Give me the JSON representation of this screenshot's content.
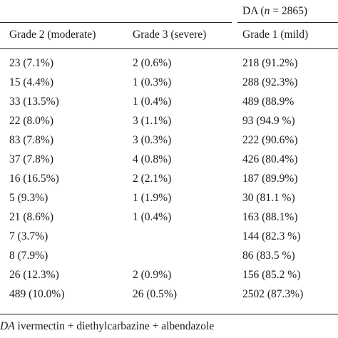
{
  "table": {
    "group_header": "DA (n = 2865)",
    "group_header_parts": {
      "prefix": "DA (",
      "n_symbol": "n",
      "suffix": " = 2865)"
    },
    "columns": [
      "Grade 2 (moderate)",
      "Grade 3 (severe)",
      "Grade 1 (mild)"
    ],
    "rows": [
      [
        "23 (7.1%)",
        "2 (0.6%)",
        "218 (91.2%)"
      ],
      [
        "15 (4.4%)",
        "1 (0.3%)",
        "288 (92.3%)"
      ],
      [
        "33 (13.5%)",
        "1 (0.4%)",
        "489 (88.9%"
      ],
      [
        "22 (8.0%)",
        "3 (1.1%)",
        "93 (94.9 %)"
      ],
      [
        "83 (7.8%)",
        "3 (0.3%)",
        "222 (90.6%)"
      ],
      [
        "37 (7.8%)",
        "4 (0.8%)",
        "426 (80.4%)"
      ],
      [
        "16 (16.5%)",
        "2 (2.1%)",
        "187 (89.9%)"
      ],
      [
        "5 (9.3%)",
        "1 (1.9%)",
        "30 (81.1 %)"
      ],
      [
        "21 (8.6%)",
        "1 (0.4%)",
        "163 (88.1%)"
      ],
      [
        "7 (3.7%)",
        "",
        "144 (82.3 %)"
      ],
      [
        "8 (7.9%)",
        "",
        "86 (83.5 %)"
      ],
      [
        "26 (12.3%)",
        "2 (0.9%)",
        "156 (85.2 %)"
      ],
      [
        "489 (10.0%)",
        "26 (0.5%)",
        "2502 (87.3%)"
      ]
    ]
  },
  "footnote": {
    "abbr": "DA",
    "text": " ivermectin + diethylcarbazine + albendazole"
  }
}
